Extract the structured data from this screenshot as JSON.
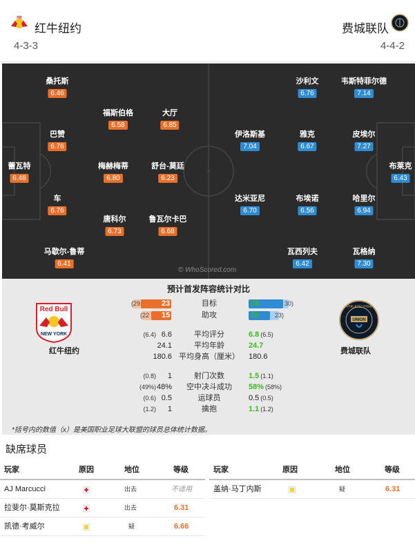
{
  "home": {
    "name": "红牛纽约",
    "formation": "4-3-3",
    "color": "#e8702a",
    "players": [
      {
        "name": "桑托斯",
        "rating": "6.46"
      },
      {
        "name": "福斯伯格",
        "rating": "6.58"
      },
      {
        "name": "大厅",
        "rating": "6.85"
      },
      {
        "name": "巴赞",
        "rating": "6.76"
      },
      {
        "name": "蕾瓦特",
        "rating": "6.48"
      },
      {
        "name": "梅赫梅蒂",
        "rating": "6.80"
      },
      {
        "name": "舒台-莫廷",
        "rating": "6.23"
      },
      {
        "name": "车",
        "rating": "6.76"
      },
      {
        "name": "唐科尔",
        "rating": "6.73"
      },
      {
        "name": "鲁瓦尔卡巴",
        "rating": "6.68"
      },
      {
        "name": "马歇尔-鲁蒂",
        "rating": "6.41"
      }
    ]
  },
  "away": {
    "name": "费城联队",
    "formation": "4-4-2",
    "color": "#2f8cd3",
    "players": [
      {
        "name": "沙利文",
        "rating": "6.76"
      },
      {
        "name": "韦斯特菲尔德",
        "rating": "7.14"
      },
      {
        "name": "伊洛斯基",
        "rating": "7.04"
      },
      {
        "name": "雅克",
        "rating": "6.67"
      },
      {
        "name": "皮埃尔",
        "rating": "7.27"
      },
      {
        "name": "布莱克",
        "rating": "6.43"
      },
      {
        "name": "达米亚尼",
        "rating": "6.70"
      },
      {
        "name": "布埃诺",
        "rating": "6.56"
      },
      {
        "name": "哈里尔",
        "rating": "6.94"
      },
      {
        "name": "瓦西列夫",
        "rating": "6.42"
      },
      {
        "name": "瓦格纳",
        "rating": "7.30"
      }
    ]
  },
  "watermark": "© WhoScored.com",
  "comparison": {
    "title": "预计首发阵容统计对比",
    "bars": [
      {
        "label": "目标",
        "home": 23,
        "home_paren": "(29",
        "away": 26,
        "away_paren": "30)"
      },
      {
        "label": "助攻",
        "home": 15,
        "home_paren": "(22",
        "away": 16,
        "away_paren": "23)"
      }
    ],
    "stats_a": [
      {
        "label": "平均评分",
        "home_paren": "(6.4)",
        "home": "6.6",
        "away": "6.8",
        "away_paren": "(6.5)",
        "away_highlight": true
      },
      {
        "label": "平均年龄",
        "home_paren": "",
        "home": "24.1",
        "away": "24.7",
        "away_paren": "",
        "away_highlight": true
      },
      {
        "label": "平均身高（厘米）",
        "home_paren": "",
        "home": "180.6",
        "away": "180.6",
        "away_paren": "",
        "away_highlight": false
      }
    ],
    "stats_b": [
      {
        "label": "射门次数",
        "home_paren": "(0.8)",
        "home": "1",
        "away": "1.5",
        "away_paren": "(1.1)",
        "away_highlight": true
      },
      {
        "label": "空中决斗成功",
        "home_paren": "(49%)",
        "home": "48%",
        "away": "58%",
        "away_paren": "(58%)",
        "away_highlight": true
      },
      {
        "label": "运球员",
        "home_paren": "(0.6)",
        "home": "0.5",
        "away": "0.5",
        "away_paren": "(0.5)",
        "away_highlight": false
      },
      {
        "label": "擒抱",
        "home_paren": "(1.2)",
        "home": "1",
        "away": "1.1",
        "away_paren": "(1.2)",
        "away_highlight": true
      }
    ],
    "footnote": "*括号内的数值（x）是美国职业足球大联盟的球员总体统计数据。"
  },
  "missing": {
    "title": "缺席球员",
    "headers": {
      "player": "玩家",
      "reason": "原因",
      "status": "地位",
      "rating": "等级"
    },
    "home": [
      {
        "player": "AJ Marcucci",
        "icon": "injury-cross-icon",
        "status": "出去",
        "rating": "不适用"
      },
      {
        "player": "拉斐尔·莫斯克拉",
        "icon": "injury-cross-icon",
        "status": "出去",
        "rating": "6.31"
      },
      {
        "player": "凯德·考威尔",
        "icon": "doubtful-icon",
        "status": "疑",
        "rating": "6.66"
      }
    ],
    "away": [
      {
        "player": "盖纳·马丁内斯",
        "icon": "doubtful-icon",
        "status": "疑",
        "rating": "6.31"
      }
    ]
  }
}
